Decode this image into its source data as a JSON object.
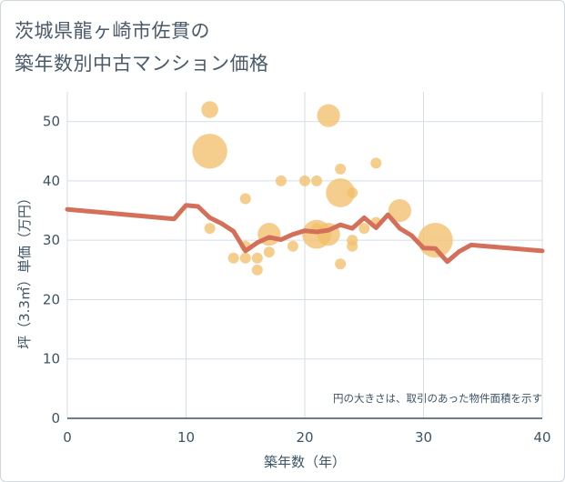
{
  "title": {
    "line1": "茨城県龍ヶ崎市佐貫の",
    "line2": "築年数別中古マンション価格"
  },
  "chart_data": {
    "type": "scatter",
    "title": "茨城県龍ヶ崎市佐貫の築年数別中古マンション価格",
    "xlabel": "築年数（年）",
    "ylabel": "坪（3.3㎡）単価（万円）",
    "xlim": [
      0,
      40
    ],
    "ylim": [
      0,
      55
    ],
    "xticks": [
      "0",
      "10",
      "20",
      "30",
      "40"
    ],
    "yticks": [
      "0",
      "10",
      "20",
      "30",
      "40",
      "50"
    ],
    "grid": true,
    "note": "円の大きさは、取引のあった物件面積を示す",
    "colors": {
      "bubble": "#f2c06d",
      "line": "#d4705a",
      "grid": "#d5dee7",
      "axis": "#3d5366"
    },
    "bubbles": [
      {
        "x": 12,
        "y": 52,
        "size": 2
      },
      {
        "x": 12,
        "y": 45,
        "size": 5
      },
      {
        "x": 12,
        "y": 32,
        "size": 1
      },
      {
        "x": 14,
        "y": 27,
        "size": 1
      },
      {
        "x": 15,
        "y": 37,
        "size": 1
      },
      {
        "x": 15,
        "y": 29,
        "size": 1
      },
      {
        "x": 15,
        "y": 27,
        "size": 1
      },
      {
        "x": 16,
        "y": 27,
        "size": 1
      },
      {
        "x": 16,
        "y": 25,
        "size": 1
      },
      {
        "x": 17,
        "y": 31,
        "size": 3
      },
      {
        "x": 17,
        "y": 28,
        "size": 1
      },
      {
        "x": 18,
        "y": 40,
        "size": 1
      },
      {
        "x": 19,
        "y": 29,
        "size": 1
      },
      {
        "x": 20,
        "y": 40,
        "size": 1
      },
      {
        "x": 21,
        "y": 40,
        "size": 1
      },
      {
        "x": 21,
        "y": 32,
        "size": 1
      },
      {
        "x": 21,
        "y": 31,
        "size": 4
      },
      {
        "x": 22,
        "y": 51,
        "size": 3
      },
      {
        "x": 22,
        "y": 31,
        "size": 3
      },
      {
        "x": 23,
        "y": 42,
        "size": 1
      },
      {
        "x": 23,
        "y": 38,
        "size": 4
      },
      {
        "x": 23,
        "y": 26,
        "size": 1
      },
      {
        "x": 24,
        "y": 38,
        "size": 1
      },
      {
        "x": 24,
        "y": 30,
        "size": 1
      },
      {
        "x": 24,
        "y": 29,
        "size": 1
      },
      {
        "x": 25,
        "y": 32,
        "size": 1
      },
      {
        "x": 26,
        "y": 43,
        "size": 1
      },
      {
        "x": 26,
        "y": 33,
        "size": 1
      },
      {
        "x": 28,
        "y": 35,
        "size": 3
      },
      {
        "x": 31,
        "y": 30,
        "size": 5
      }
    ],
    "trend": {
      "x": [
        0,
        9,
        10,
        11,
        12,
        13,
        14,
        15,
        16,
        17,
        18,
        19,
        20,
        21,
        22,
        23,
        24,
        25,
        26,
        27,
        28,
        29,
        30,
        31,
        32,
        33,
        34,
        40
      ],
      "y": [
        35.2,
        33.6,
        35.9,
        35.7,
        33.8,
        32.8,
        31.5,
        28.2,
        29.6,
        30.5,
        30.1,
        31.0,
        31.6,
        31.4,
        31.7,
        32.6,
        32.0,
        33.8,
        32.1,
        34.3,
        32.0,
        30.8,
        28.7,
        28.6,
        26.4,
        28.1,
        29.2,
        28.2
      ]
    }
  }
}
